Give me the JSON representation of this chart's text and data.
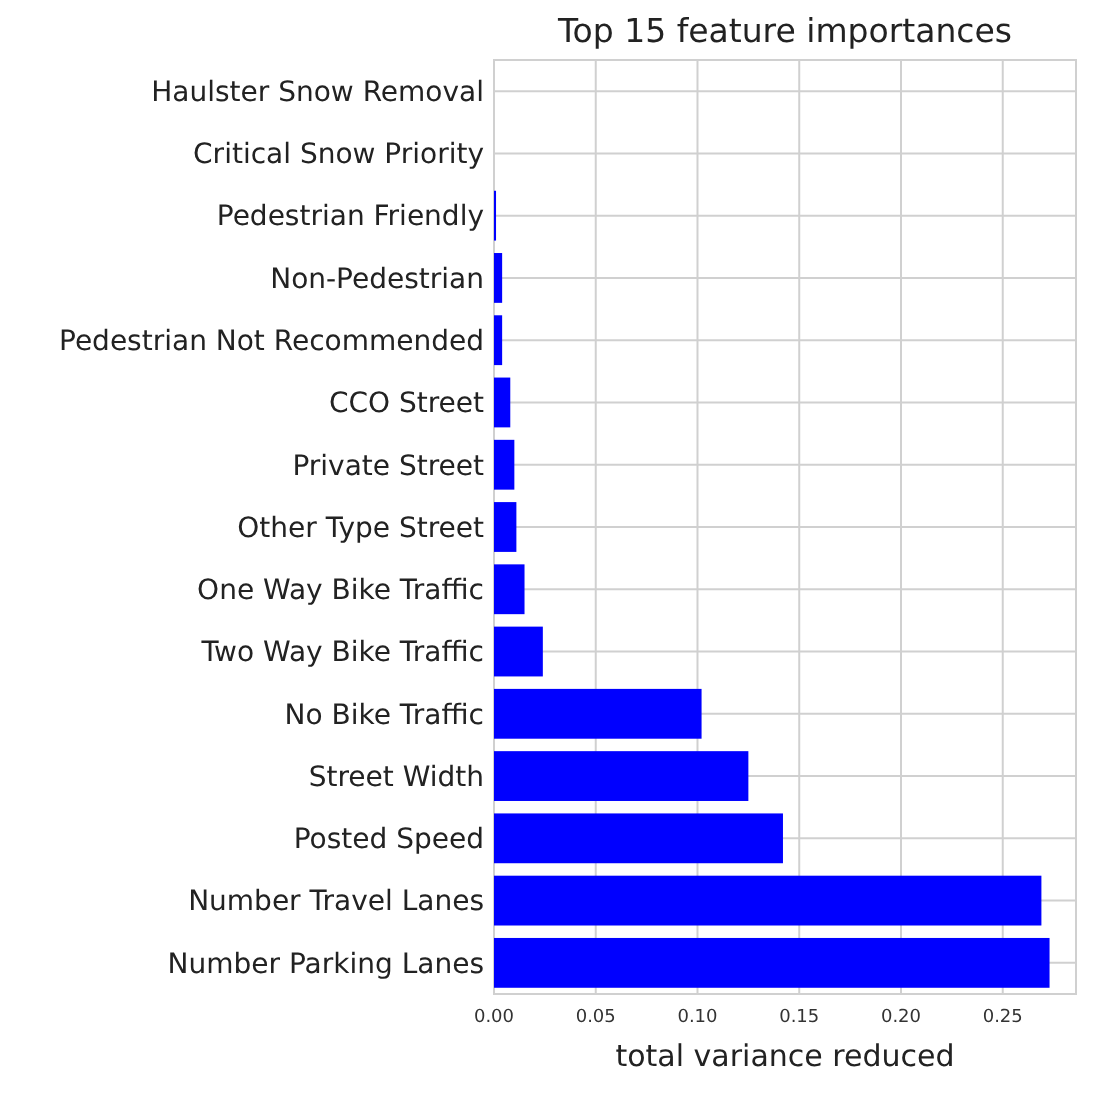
{
  "chart_data": {
    "type": "bar",
    "orientation": "horizontal",
    "title": "Top 15 feature importances",
    "xlabel": "total variance reduced",
    "categories": [
      "Haulster Snow Removal",
      "Critical Snow Priority",
      "Pedestrian Friendly",
      "Non-Pedestrian",
      "Pedestrian Not Recommended",
      "CCO Street",
      "Private Street",
      "Other Type Street",
      "One Way Bike Traffic",
      "Two Way Bike Traffic",
      "No Bike Traffic",
      "Street Width",
      "Posted Speed",
      "Number Travel Lanes",
      "Number Parking Lanes"
    ],
    "values": [
      0,
      0,
      0.001,
      0.004,
      0.004,
      0.008,
      0.01,
      0.011,
      0.015,
      0.024,
      0.102,
      0.125,
      0.142,
      0.269,
      0.273
    ],
    "color": "#0000ff",
    "xlim": [
      0,
      0.286
    ],
    "xticks": [
      {
        "value": 0,
        "label": "0.00"
      },
      {
        "value": 0.05,
        "label": "0.05"
      },
      {
        "value": 0.1,
        "label": "0.10"
      },
      {
        "value": 0.15,
        "label": "0.15"
      },
      {
        "value": 0.2,
        "label": "0.20"
      },
      {
        "value": 0.25,
        "label": "0.25"
      }
    ],
    "grid": true
  }
}
